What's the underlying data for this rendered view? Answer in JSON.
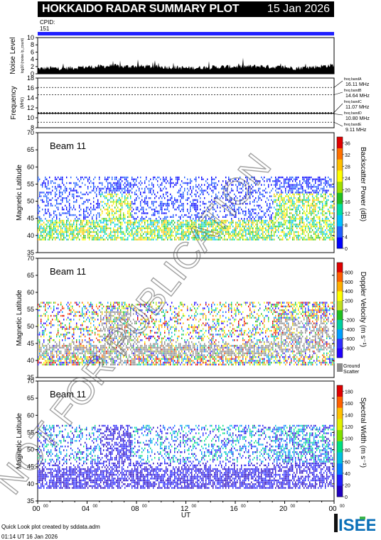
{
  "header": {
    "title": "HOKKAIDO RADAR SUMMARY PLOT",
    "date": "15 Jan 2026"
  },
  "cpid": {
    "label": "CPID:",
    "value": "151"
  },
  "footer": {
    "line1": "Quick Look plot created by sddata.adm",
    "line2": "01:14 UT 16 Jan 2026"
  },
  "logo_text": "ISEE",
  "watermark": "NOT FOR PUBLICATION",
  "colors": {
    "beam": "#000000",
    "ground_scatter": "#8c8c8c",
    "cpid_bar": "#2020ff"
  },
  "chart_data": [
    {
      "type": "area",
      "ylabel": "Noise Level",
      "ylabel_small": "log10 (noise /p_count)",
      "yticks": [
        "0",
        "2",
        "4",
        "6",
        "8",
        "10"
      ],
      "ylim": [
        0,
        10
      ],
      "x_hours": [
        0,
        1,
        2,
        3,
        4,
        5,
        6,
        7,
        8,
        9,
        10,
        11,
        12,
        13,
        14,
        15,
        16,
        17,
        18,
        19,
        20,
        21,
        22,
        23,
        24
      ],
      "values": [
        1.4,
        1.6,
        1.5,
        1.7,
        1.9,
        2.0,
        2.2,
        2.0,
        2.1,
        2.0,
        1.9,
        1.8,
        1.6,
        1.7,
        1.8,
        1.9,
        2.0,
        2.0,
        2.1,
        1.9,
        1.8,
        1.6,
        1.8,
        2.1,
        2.4
      ]
    },
    {
      "type": "line",
      "ylabel": "Frequency",
      "unit": "(MHz)",
      "yticks": [
        "8",
        "10",
        "12",
        "14",
        "16",
        "18"
      ],
      "ylim": [
        8,
        18
      ],
      "series": [
        {
          "name": "freq bandA",
          "value": 16.11,
          "label": "16.11 MHz"
        },
        {
          "name": "freq bandB",
          "value": 14.64,
          "label": "14.64 MHz"
        },
        {
          "name": "freq bandC",
          "value": 11.07,
          "label": "11.07 MHz"
        },
        {
          "name": "freq bandD",
          "value": 10.8,
          "label": "10.80 MHz"
        },
        {
          "name": "freq bandE",
          "value": 9.11,
          "label": "9.11 MHz"
        }
      ],
      "active_level": 10.9
    },
    {
      "type": "heatmap",
      "beam_label": "Beam 11",
      "ylabel": "Magnetic Latitude",
      "yticks": [
        "35",
        "40",
        "45",
        "50",
        "55",
        "60",
        "65",
        "70"
      ],
      "ylim": [
        35,
        70
      ],
      "colorbar_label": "Backscatter Power (dB)",
      "colorbar_ticks": [
        "0",
        "4",
        "8",
        "12",
        "16",
        "20",
        "24",
        "28",
        "32",
        "36"
      ],
      "colorbar_range": [
        0,
        38
      ]
    },
    {
      "type": "heatmap",
      "beam_label": "Beam 11",
      "ylabel": "Magnetic Latitude",
      "yticks": [
        "35",
        "40",
        "45",
        "50",
        "55",
        "60",
        "65",
        "70"
      ],
      "ylim": [
        35,
        70
      ],
      "colorbar_label": "Doppler Velocity (m s⁻¹)",
      "colorbar_ticks": [
        "800",
        "600",
        "400",
        "200",
        "0",
        "-200",
        "-400",
        "-600",
        "-800"
      ],
      "colorbar_range": [
        -1000,
        1000
      ],
      "ground_scatter_label": "Ground Scatter"
    },
    {
      "type": "heatmap",
      "beam_label": "Beam 11",
      "ylabel": "Magnetic Latitude",
      "yticks": [
        "35",
        "40",
        "45",
        "50",
        "55",
        "60",
        "65",
        "70"
      ],
      "ylim": [
        35,
        70
      ],
      "colorbar_label": "Spectral Width (m s⁻¹)",
      "colorbar_ticks": [
        "0",
        "20",
        "40",
        "60",
        "80",
        "100",
        "120",
        "140",
        "160",
        "180"
      ],
      "colorbar_range": [
        0,
        190
      ],
      "xlabel": "UT",
      "xticks": [
        "00",
        "04",
        "08",
        "12",
        "16",
        "20",
        "00"
      ],
      "xtick_suffix": "00"
    }
  ]
}
